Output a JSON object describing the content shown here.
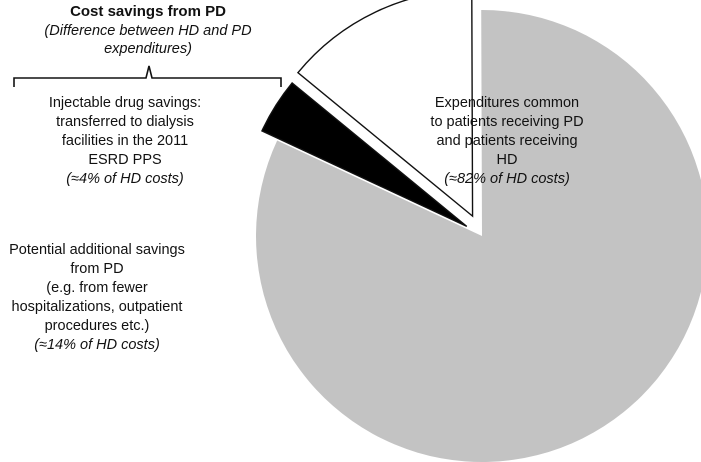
{
  "chart_data": {
    "type": "pie",
    "title": "Cost savings from PD",
    "subtitle": [
      "(Difference between HD and PD",
      "expenditures)"
    ],
    "slices": [
      {
        "key": "common",
        "value": 82,
        "color": "#c3c3c3",
        "label": [
          "Expenditures common",
          "to patients receiving PD",
          "and patients receiving",
          "HD"
        ],
        "pct_label": "(≈82% of HD costs)"
      },
      {
        "key": "injectable",
        "value": 4,
        "color": "#000000",
        "label": [
          "Injectable drug savings:",
          "transferred to dialysis",
          "facilities in the 2011",
          "ESRD PPS"
        ],
        "pct_label": "(≈4% of HD costs)"
      },
      {
        "key": "additional",
        "value": 14,
        "color": "#ffffff",
        "label": [
          "Potential additional savings",
          "from PD",
          "(e.g. from fewer",
          "hospitalizations, outpatient",
          "procedures etc.)"
        ],
        "pct_label": "(≈14% of HD costs)"
      }
    ]
  }
}
